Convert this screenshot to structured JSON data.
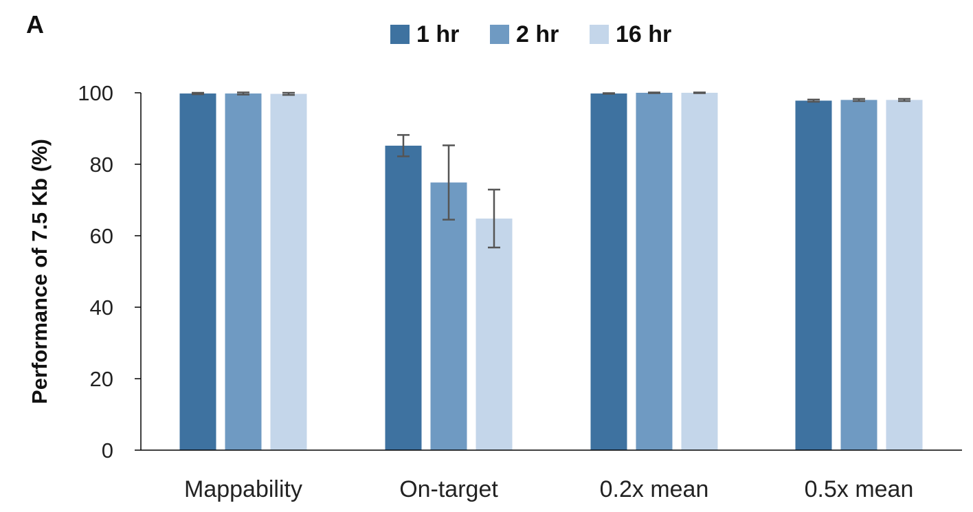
{
  "panel_label": "A",
  "chart_data": {
    "type": "bar",
    "categories": [
      "Mappability",
      "On-target",
      "0.2x mean",
      "0.5x mean"
    ],
    "series": [
      {
        "name": "1 hr",
        "color": "#3e72a0",
        "values": [
          99.8,
          85.2,
          99.8,
          97.8
        ],
        "errors": [
          0.2,
          3.0,
          0.1,
          0.3
        ]
      },
      {
        "name": "2 hr",
        "color": "#6f9ac2",
        "values": [
          99.8,
          74.9,
          100.0,
          98.0
        ],
        "errors": [
          0.3,
          10.4,
          0.1,
          0.3
        ]
      },
      {
        "name": "16 hr",
        "color": "#c4d6ea",
        "values": [
          99.7,
          64.8,
          100.0,
          98.0
        ],
        "errors": [
          0.3,
          8.1,
          0.1,
          0.3
        ]
      }
    ],
    "xlabel": "",
    "ylabel": "Performance of 7.5 Kb (%)",
    "ylim": [
      0,
      100
    ],
    "yticks": [
      "0",
      "20",
      "40",
      "60",
      "80",
      "100"
    ],
    "error_bars": true,
    "grid": false,
    "legend_position": "top"
  }
}
